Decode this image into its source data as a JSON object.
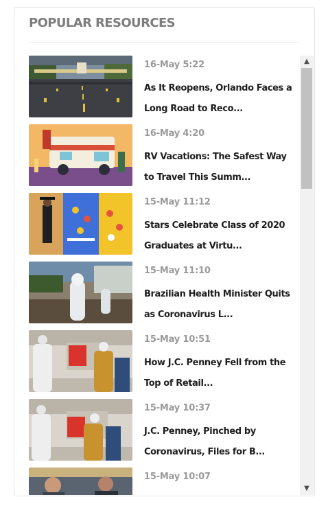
{
  "widget": {
    "title": "POPULAR RESOURCES",
    "items": [
      {
        "date": "16-May 5:22",
        "headline": "As It Reopens, Orlando Faces a Long Road to Reco...",
        "thumb_icon": "empty-road-image"
      },
      {
        "date": "16-May 4:20",
        "headline": "RV Vacations: The Safest Way to Travel This Summ...",
        "thumb_icon": "rv-camper-illustration"
      },
      {
        "date": "15-May 11:12",
        "headline": "Stars Celebrate Class of 2020 Graduates at Virtu...",
        "thumb_icon": "graduation-collage-image"
      },
      {
        "date": "15-May 11:10",
        "headline": "Brazilian Health Minister Quits as Coronavirus L...",
        "thumb_icon": "protective-suit-image"
      },
      {
        "date": "15-May 10:51",
        "headline": "How J.C. Penney Fell from the Top of Retail...",
        "thumb_icon": "store-mannequins-image"
      },
      {
        "date": "15-May 10:37",
        "headline": "J.C. Penney, Pinched by Coronavirus, Files for B...",
        "thumb_icon": "store-mannequins-image"
      },
      {
        "date": "15-May 10:07",
        "headline": "",
        "thumb_icon": "people-image"
      }
    ]
  },
  "scrollbar": {
    "up_icon": "chevron-up-icon",
    "down_icon": "chevron-down-icon"
  },
  "colors": {
    "title": "#7d7d7d",
    "date": "#9a9a9a",
    "headline": "#1e1e1e",
    "border": "#e2e2e2",
    "scroll_thumb": "#c1c1c1"
  }
}
